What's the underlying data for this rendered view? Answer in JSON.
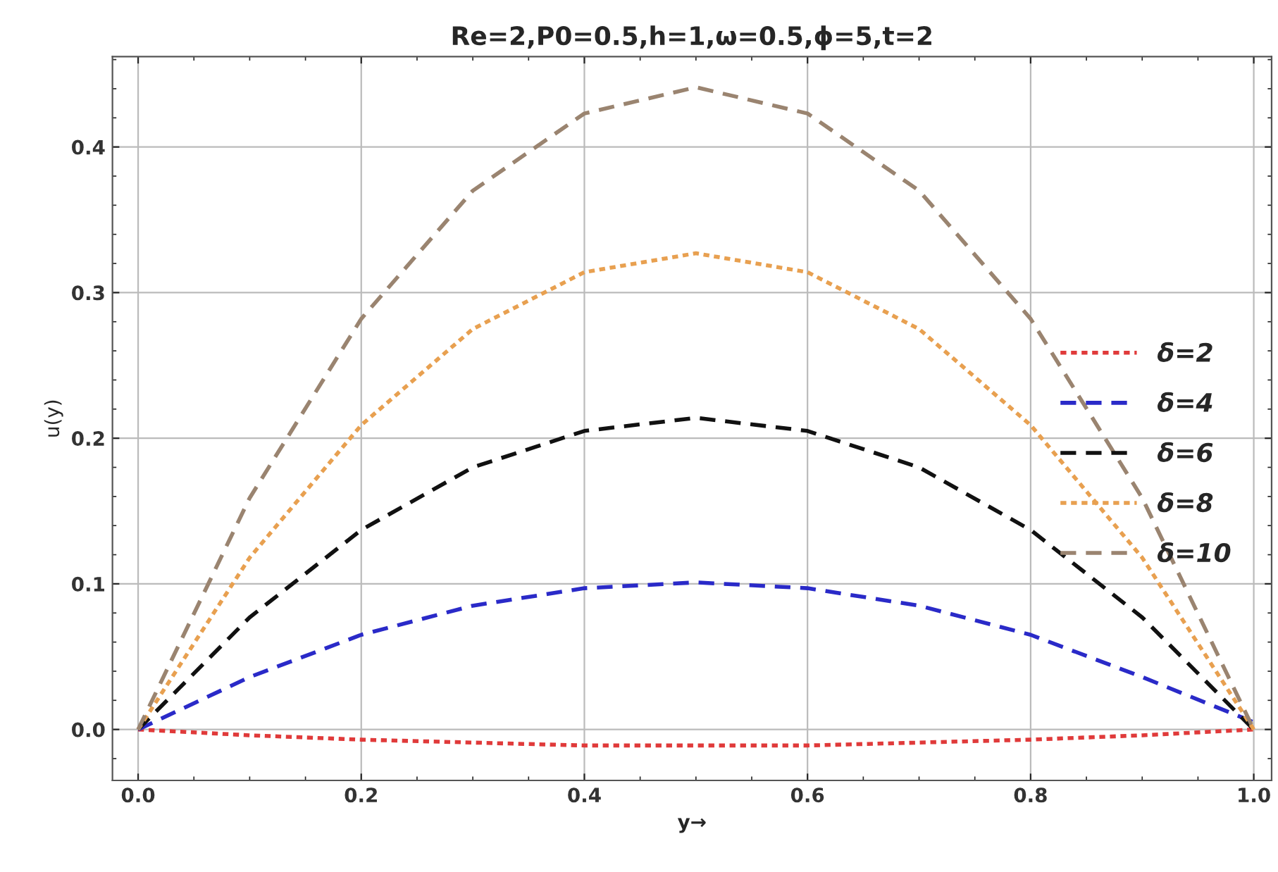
{
  "chart_data": {
    "type": "line",
    "title": "Re=2,P0=0.5,h=1,ω=0.5,ϕ=5,t=2",
    "xlabel": "y→",
    "ylabel": "u(y)",
    "x": [
      0,
      0.1,
      0.2,
      0.3,
      0.4,
      0.5,
      0.6,
      0.7,
      0.8,
      0.9,
      1.0
    ],
    "series": [
      {
        "name": "δ=2",
        "color": "#e03a3a",
        "line_style": "dotted",
        "values": [
          0,
          -0.004,
          -0.007,
          -0.009,
          -0.011,
          -0.011,
          -0.011,
          -0.009,
          -0.007,
          -0.004,
          0
        ]
      },
      {
        "name": "δ=4",
        "color": "#2a2ac8",
        "line_style": "dashed",
        "values": [
          0,
          0.036,
          0.065,
          0.085,
          0.097,
          0.101,
          0.097,
          0.085,
          0.065,
          0.036,
          0.005
        ]
      },
      {
        "name": "δ=6",
        "color": "#111111",
        "line_style": "dashed",
        "values": [
          0,
          0.077,
          0.137,
          0.18,
          0.205,
          0.214,
          0.205,
          0.18,
          0.137,
          0.077,
          0
        ]
      },
      {
        "name": "δ=8",
        "color": "#e8a050",
        "line_style": "dotted",
        "values": [
          0,
          0.118,
          0.209,
          0.275,
          0.314,
          0.327,
          0.314,
          0.275,
          0.209,
          0.118,
          0
        ]
      },
      {
        "name": "δ=10",
        "color": "#9a8470",
        "line_style": "dashed",
        "values": [
          0,
          0.159,
          0.282,
          0.37,
          0.423,
          0.441,
          0.423,
          0.37,
          0.282,
          0.159,
          0
        ]
      }
    ],
    "xlim": [
      -0.023,
      1.016
    ],
    "ylim": [
      -0.035,
      0.462
    ],
    "xticks": [
      {
        "value": 0,
        "label": "0.0"
      },
      0.2,
      0.4,
      0.6,
      0.8,
      {
        "value": 1,
        "label": "1.0"
      }
    ],
    "yticks": [
      {
        "value": 0,
        "label": "0.0"
      },
      0.1,
      0.2,
      0.3,
      0.4
    ],
    "grid": true,
    "legend": "right",
    "marker": "none"
  }
}
